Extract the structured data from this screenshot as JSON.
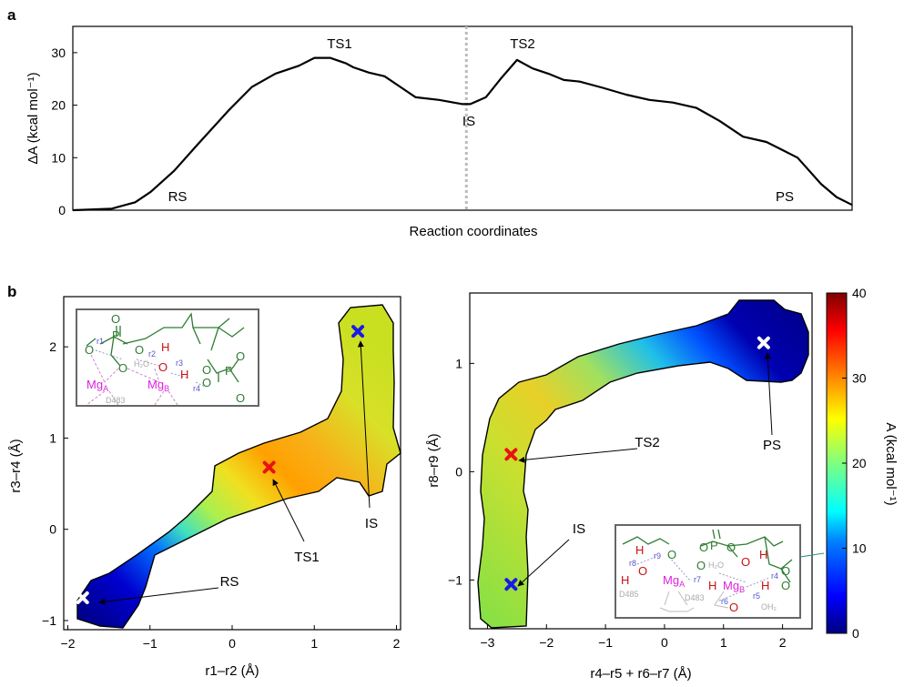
{
  "panel_a": {
    "letter": "a",
    "ylabel": "ΔA (kcal mol⁻¹)",
    "xlabel": "Reaction coordinates",
    "yticks": [
      0,
      10,
      20,
      30
    ],
    "ylim": [
      0,
      35
    ],
    "labels": {
      "rs": "RS",
      "ts1": "TS1",
      "is": "IS",
      "ts2": "TS2",
      "ps": "PS"
    }
  },
  "panel_b": {
    "letter": "b",
    "left": {
      "xlabel": "r1–r2 (Å)",
      "ylabel": "r3–r4 (Å)",
      "xticks": [
        -2,
        -1,
        0,
        1,
        2
      ],
      "yticks": [
        -1,
        0,
        1,
        2
      ],
      "xlim": [
        -2.05,
        2.05
      ],
      "ylim": [
        -1.1,
        2.55
      ],
      "markers": [
        {
          "label": "RS",
          "x": -1.82,
          "y": -0.75,
          "color": "#ffffff"
        },
        {
          "label": "TS1",
          "x": 0.45,
          "y": 0.68,
          "color": "#e8130f"
        },
        {
          "label": "IS",
          "x": 1.53,
          "y": 2.17,
          "color": "#1a1ae6"
        }
      ],
      "inset": {
        "p": "P",
        "o": "O",
        "h": "H",
        "mga": "Mg",
        "mga_sub": "A",
        "mgb": "Mg",
        "mgb_sub": "B",
        "d483": "D483",
        "h2o": "H₂O",
        "r1": "r1",
        "r2": "r2",
        "r3": "r3",
        "r4": "r4"
      }
    },
    "right": {
      "xlabel": "r4–r5 + r6–r7 (Å)",
      "ylabel": "r8–r9 (Å)",
      "xticks": [
        -3,
        -2,
        -1,
        0,
        1,
        2
      ],
      "yticks": [
        -1,
        0,
        1
      ],
      "xlim": [
        -3.3,
        2.5
      ],
      "ylim": [
        -1.45,
        1.65
      ],
      "markers": [
        {
          "label": "TS2",
          "x": -2.6,
          "y": 0.16,
          "color": "#e8130f"
        },
        {
          "label": "IS",
          "x": -2.6,
          "y": -1.04,
          "color": "#1a1ae6"
        },
        {
          "label": "PS",
          "x": 1.68,
          "y": 1.19,
          "color": "#ffffff"
        }
      ],
      "inset": {
        "p": "P",
        "o": "O",
        "h": "H",
        "mga": "Mg",
        "mga_sub": "A",
        "mgb": "Mg",
        "mgb_sub": "B",
        "d483": "D483",
        "d485": "D485",
        "h2o": "H₂O",
        "oh2": "OH₂",
        "r4": "r4",
        "r5": "r5",
        "r6": "r6",
        "r7": "r7",
        "r8": "r8",
        "r9": "r9"
      }
    },
    "colorbar": {
      "label": "A (kcal mol⁻¹)",
      "ticks": [
        0,
        10,
        20,
        30,
        40
      ],
      "range": [
        0,
        40
      ],
      "colormap": "jet"
    }
  },
  "chart_data": [
    {
      "type": "line",
      "title": "",
      "xlabel": "Reaction coordinates",
      "ylabel": "ΔA (kcal mol⁻¹)",
      "ylim": [
        0,
        35
      ],
      "grid": false,
      "x": [
        0,
        0.02,
        0.05,
        0.08,
        0.1,
        0.13,
        0.16,
        0.2,
        0.23,
        0.26,
        0.29,
        0.31,
        0.33,
        0.35,
        0.36,
        0.38,
        0.4,
        0.42,
        0.44,
        0.47,
        0.5,
        0.51,
        0.53,
        0.55,
        0.57,
        0.59,
        0.61,
        0.63,
        0.65,
        0.68,
        0.71,
        0.74,
        0.77,
        0.8,
        0.83,
        0.86,
        0.89,
        0.91,
        0.93,
        0.96,
        0.98,
        1.0
      ],
      "series": [
        {
          "values": [
            0,
            0.1,
            0.3,
            1.5,
            3.5,
            7.5,
            12.5,
            19,
            23.5,
            26,
            27.5,
            29,
            29,
            28,
            27.2,
            26.2,
            25.5,
            23.5,
            21.5,
            21,
            20.2,
            20.2,
            21.5,
            25.2,
            28.6,
            27,
            26,
            24.8,
            24.5,
            23.3,
            22,
            21,
            20.5,
            19.5,
            17,
            14,
            13,
            11.5,
            10,
            5,
            2.5,
            1
          ]
        }
      ],
      "annotations": [
        {
          "text": "RS",
          "x": 0.13
        },
        {
          "text": "TS1",
          "x": 0.34
        },
        {
          "text": "IS",
          "x": 0.505
        },
        {
          "text": "TS2",
          "x": 0.58
        },
        {
          "text": "PS",
          "x": 0.91
        }
      ],
      "vline": {
        "x": 0.505,
        "style": "dotted"
      }
    },
    {
      "type": "heatmap",
      "title": "",
      "xlabel": "r1–r2 (Å)",
      "ylabel": "r3–r4 (Å)",
      "xlim": [
        -2.05,
        2.05
      ],
      "ylim": [
        -1.1,
        2.55
      ],
      "colorbar_range": [
        0,
        40
      ],
      "points": [
        {
          "label": "RS",
          "x": -1.82,
          "y": -0.75,
          "A": 0
        },
        {
          "label": "TS1",
          "x": 0.45,
          "y": 0.68,
          "A": 29
        },
        {
          "label": "IS",
          "x": 1.53,
          "y": 2.17,
          "A": 20
        }
      ]
    },
    {
      "type": "heatmap",
      "title": "",
      "xlabel": "r4–r5 + r6–r7 (Å)",
      "ylabel": "r8–r9 (Å)",
      "xlim": [
        -3.3,
        2.5
      ],
      "ylim": [
        -1.45,
        1.65
      ],
      "colorbar_range": [
        0,
        40
      ],
      "points": [
        {
          "label": "TS2",
          "x": -2.6,
          "y": 0.16,
          "A": 28
        },
        {
          "label": "IS",
          "x": -2.6,
          "y": -1.04,
          "A": 20
        },
        {
          "label": "PS",
          "x": 1.68,
          "y": 1.19,
          "A": 1
        }
      ]
    }
  ]
}
